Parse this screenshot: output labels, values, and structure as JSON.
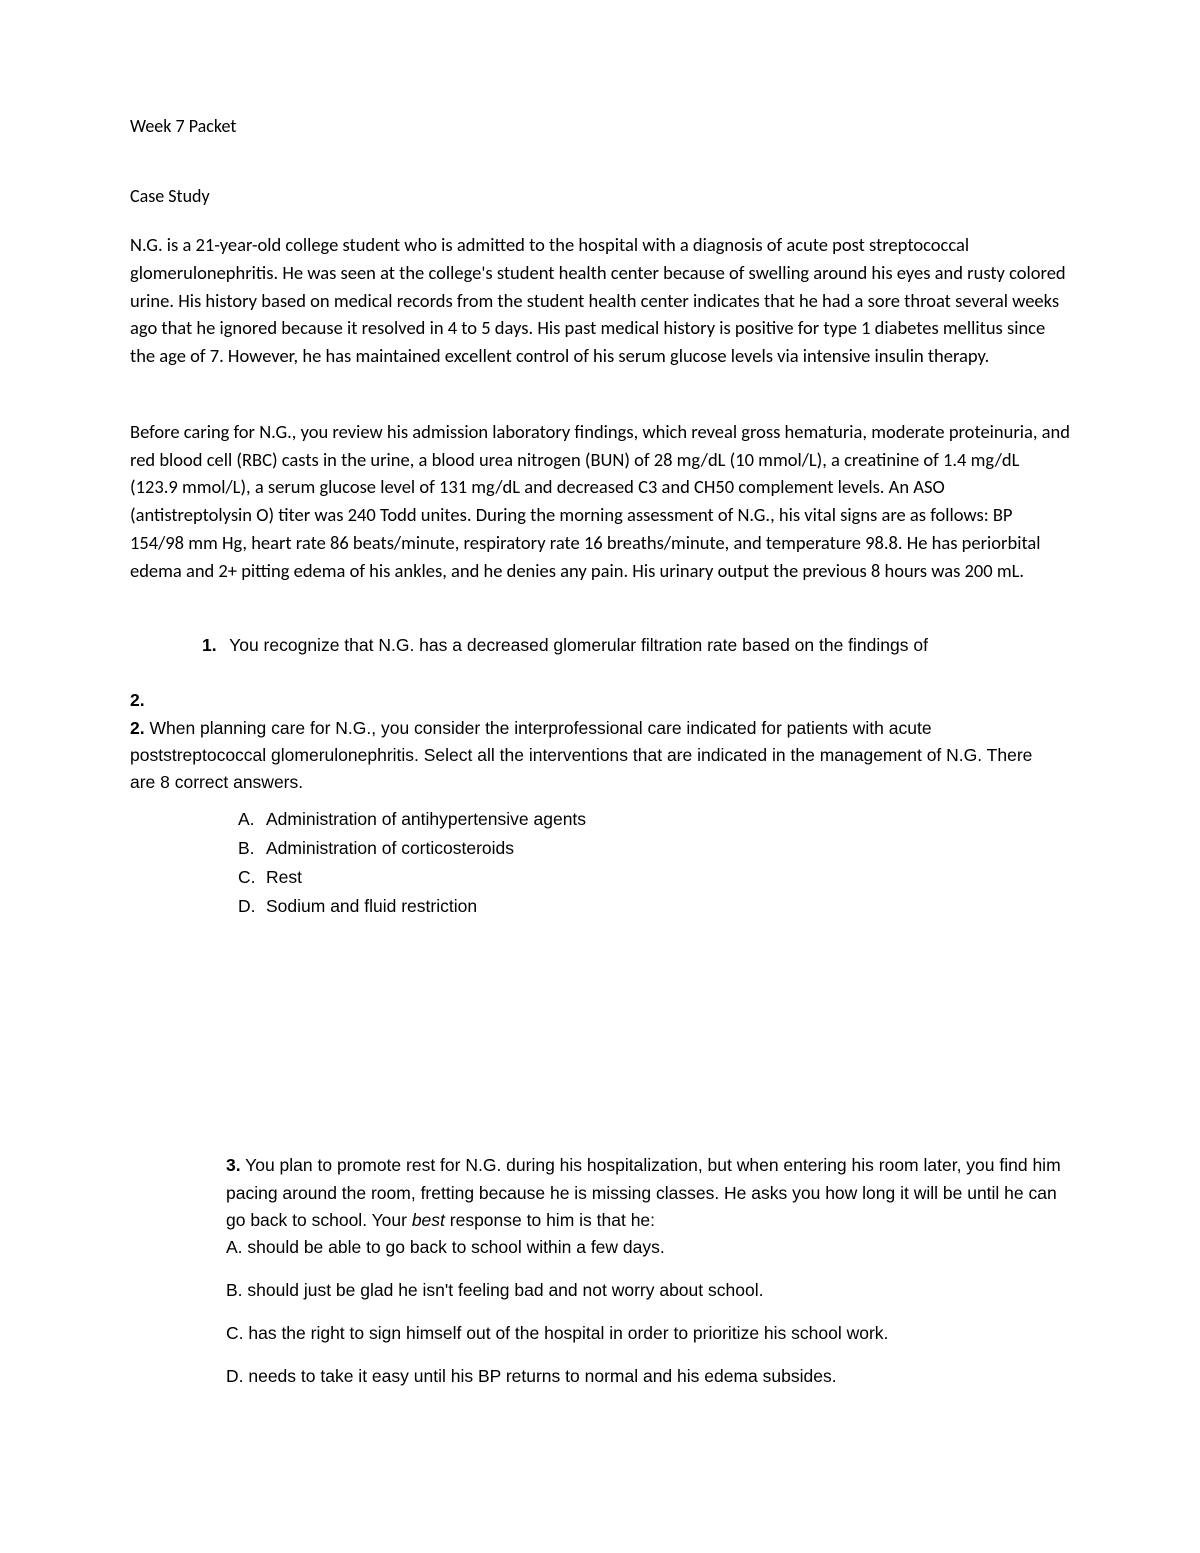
{
  "document": {
    "title": "Week 7 Packet",
    "section_heading": "Case Study",
    "paragraph1": "N.G. is a 21-year-old college student who is admitted to the hospital with a diagnosis of acute post streptococcal glomerulonephritis.  He was seen at the college's student health center because of swelling around his eyes and rusty colored urine.  His history based on medical records from the student health center indicates that he had a sore throat several weeks ago that he ignored because it resolved in 4 to 5 days.  His past medical history is positive for type 1 diabetes mellitus since the age of 7.  However, he has maintained excellent control of his serum glucose levels via intensive insulin therapy.",
    "paragraph2": "Before caring for N.G., you review his admission laboratory findings, which reveal gross hematuria, moderate proteinuria, and red blood cell (RBC) casts in the urine, a blood urea nitrogen (BUN) of 28 mg/dL (10 mmol/L), a creatinine of 1.4 mg/dL (123.9 mmol/L), a serum glucose level of 131 mg/dL and decreased C3 and CH50 complement levels.  An ASO (antistreptolysin O) titer was 240 Todd unites.  During the morning assessment of N.G., his vital signs are as follows: BP 154/98 mm Hg, heart rate 86 beats/minute, respiratory rate 16 breaths/minute, and temperature 98.8.  He has periorbital edema and 2+ pitting edema of his ankles, and he denies any pain.  His urinary output the previous 8 hours was 200 mL.",
    "q1": {
      "number": "1.",
      "text": "You recognize that N.G. has a decreased glomerular filtration rate based on the findings of"
    },
    "q2": {
      "outer_number": "2.",
      "inner_number": "2.",
      "text": "When planning care for N.G., you consider the interprofessional care indicated for patients with acute poststreptococcal glomerulonephritis. Select all the interventions that are indicated in the management of N.G. There are 8 correct answers.",
      "options": [
        {
          "letter": "A.",
          "text": "Administration of antihypertensive agents"
        },
        {
          "letter": "B.",
          "text": "Administration of corticosteroids"
        },
        {
          "letter": "C.",
          "text": "Rest"
        },
        {
          "letter": "D.",
          "text": "Sodium and fluid restriction"
        }
      ]
    },
    "q3": {
      "number": "3.",
      "lead_a": "You plan to promote rest for N.G. during his hospitalization, but when entering his room later, you find him pacing around the room, fretting because he is missing classes. He asks you how long it will be until he can go back to school. Your ",
      "italic_word": "best",
      "lead_b": " response to him is that he:",
      "inline_a": "A. should be able to go back to school within a few days.",
      "options": [
        "B. should just be glad he isn't feeling bad and not worry about school.",
        "C. has the right to sign himself out of the hospital in order to prioritize his school work.",
        "D. needs to take it easy until his BP returns to normal and his edema subsides."
      ]
    }
  },
  "style": {
    "font_color": "#000000",
    "background": "#ffffff"
  }
}
